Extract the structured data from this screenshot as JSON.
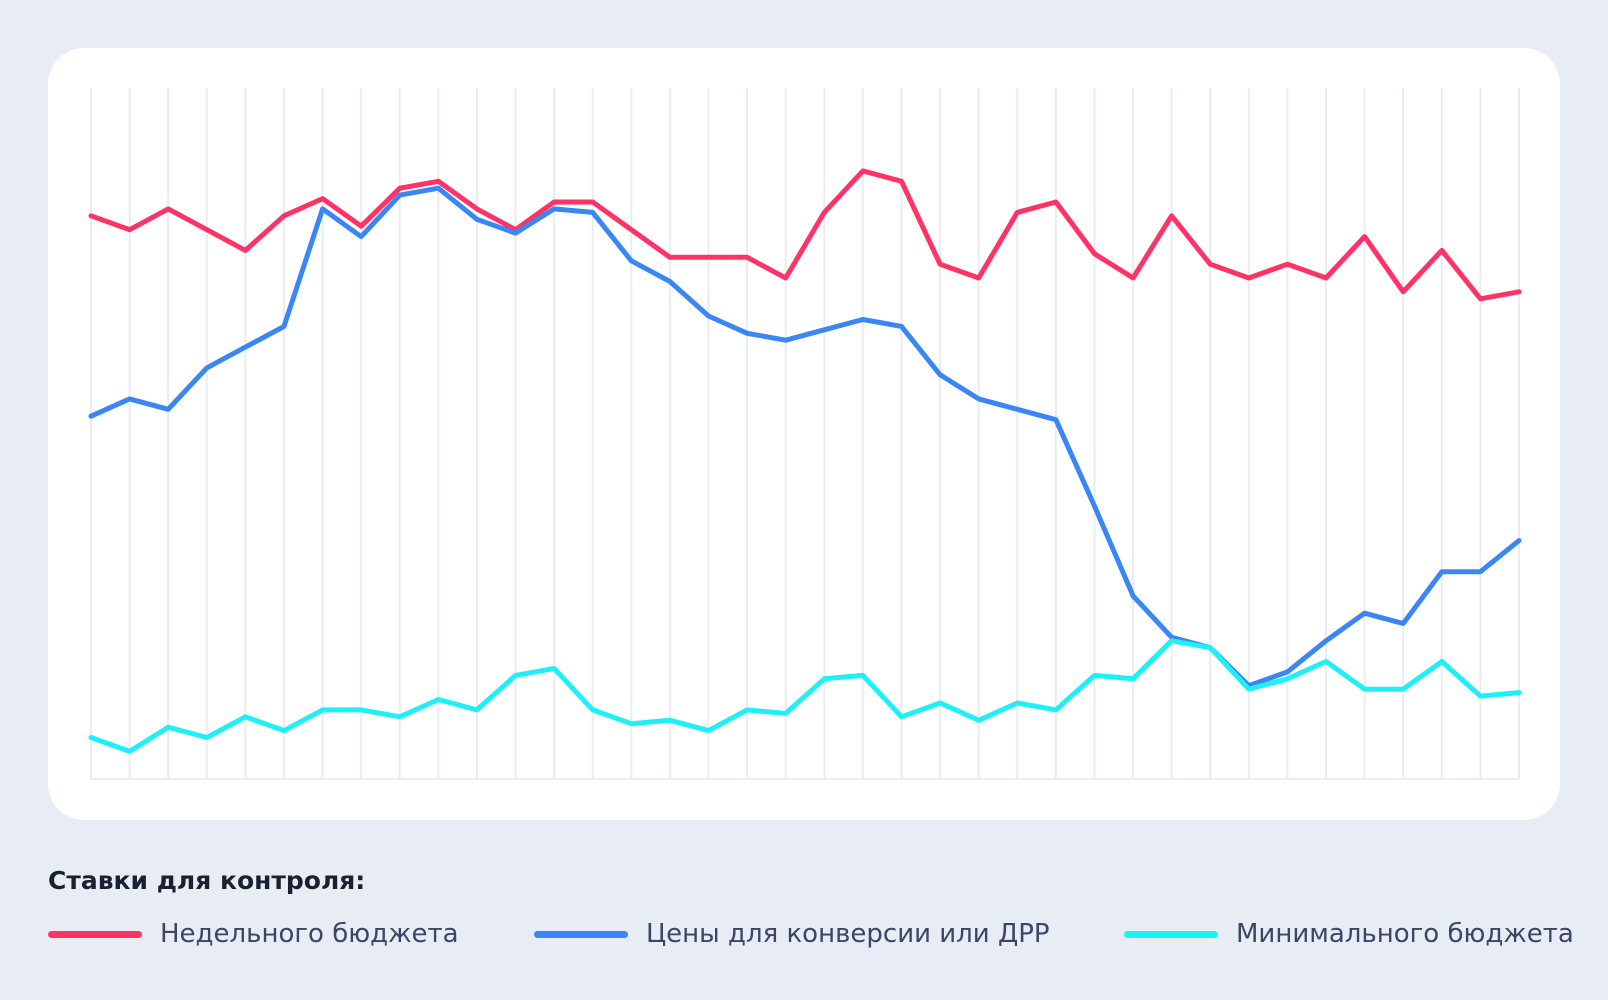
{
  "legend": {
    "title": "Ставки для контроля:"
  },
  "chart_data": {
    "type": "line",
    "title": "",
    "xlabel": "",
    "ylabel": "",
    "x": [
      1,
      2,
      3,
      4,
      5,
      6,
      7,
      8,
      9,
      10,
      11,
      12,
      13,
      14,
      15,
      16,
      17,
      18,
      19,
      20,
      21,
      22,
      23,
      24,
      25,
      26,
      27,
      28,
      29,
      30,
      31,
      32,
      33,
      34,
      35,
      36,
      37,
      38
    ],
    "ylim": [
      0,
      100
    ],
    "grid": "vertical",
    "legend_position": "bottom",
    "series": [
      {
        "name": "Недельного бюджета",
        "color": "#ff3366",
        "values": [
          81.5,
          79.5,
          82.5,
          79.5,
          76.5,
          81.5,
          84,
          80,
          85.5,
          86.5,
          82.5,
          79.5,
          83.5,
          83.5,
          79.5,
          75.5,
          75.5,
          75.5,
          72.5,
          82,
          88,
          86.5,
          74.5,
          72.5,
          82,
          83.5,
          76,
          72.5,
          81.5,
          74.5,
          72.5,
          74.5,
          72.5,
          78.5,
          70.5,
          76.5,
          69.5,
          70.5
        ]
      },
      {
        "name": "Цены для конверсии или ДРР",
        "color": "#3a86f5",
        "values": [
          52.5,
          55,
          53.5,
          59.5,
          62.5,
          65.5,
          82.5,
          78.5,
          84.5,
          85.5,
          81,
          79,
          82.5,
          82,
          75,
          72,
          67,
          64.5,
          63.5,
          65,
          66.5,
          65.5,
          58.5,
          55,
          53.5,
          52,
          39.5,
          26.5,
          20.5,
          19,
          13.5,
          15.5,
          20,
          24,
          22.5,
          30,
          30,
          34.5
        ]
      },
      {
        "name": "Минимального бюджета",
        "color": "#1ff0f8",
        "values": [
          6,
          4,
          7.5,
          6,
          9,
          7,
          10,
          10,
          9,
          11.5,
          10,
          15,
          16,
          10,
          8,
          8.5,
          7,
          10,
          9.5,
          14.5,
          15,
          9,
          11,
          8.5,
          11,
          10,
          15,
          14.5,
          20,
          19,
          13,
          14.5,
          17,
          13,
          13,
          17,
          12,
          12.5
        ]
      }
    ]
  }
}
